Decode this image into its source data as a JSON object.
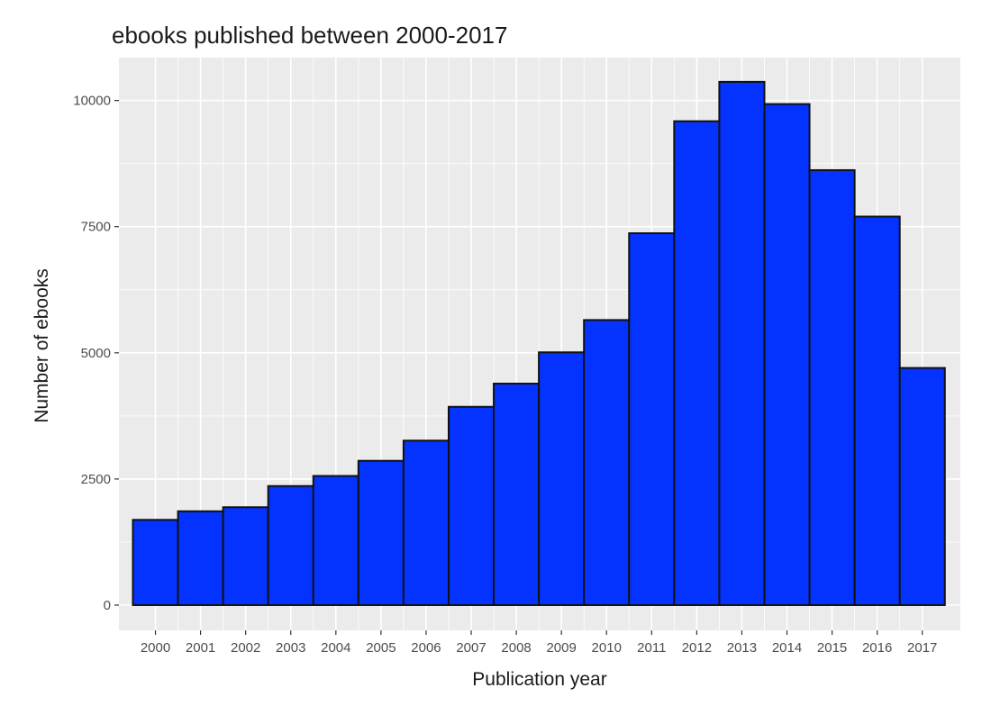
{
  "chart_data": {
    "type": "bar",
    "title": "ebooks published between 2000-2017",
    "xlabel": "Publication year",
    "ylabel": "Number of ebooks",
    "categories": [
      "2000",
      "2001",
      "2002",
      "2003",
      "2004",
      "2005",
      "2006",
      "2007",
      "2008",
      "2009",
      "2010",
      "2011",
      "2012",
      "2013",
      "2014",
      "2015",
      "2016",
      "2017"
    ],
    "values": [
      1690,
      1860,
      1940,
      2360,
      2560,
      2860,
      3260,
      3930,
      4390,
      5010,
      5650,
      7370,
      9590,
      10370,
      9930,
      8620,
      7700,
      4700
    ],
    "ylim": [
      -500,
      10850
    ],
    "yticks": [
      "0",
      "2500",
      "5000",
      "7500",
      "10000"
    ],
    "grid": true,
    "colors": {
      "bar_fill": "#0433ff",
      "bar_stroke": "#111111",
      "panel_bg": "#ebebeb",
      "grid": "#ffffff"
    }
  }
}
